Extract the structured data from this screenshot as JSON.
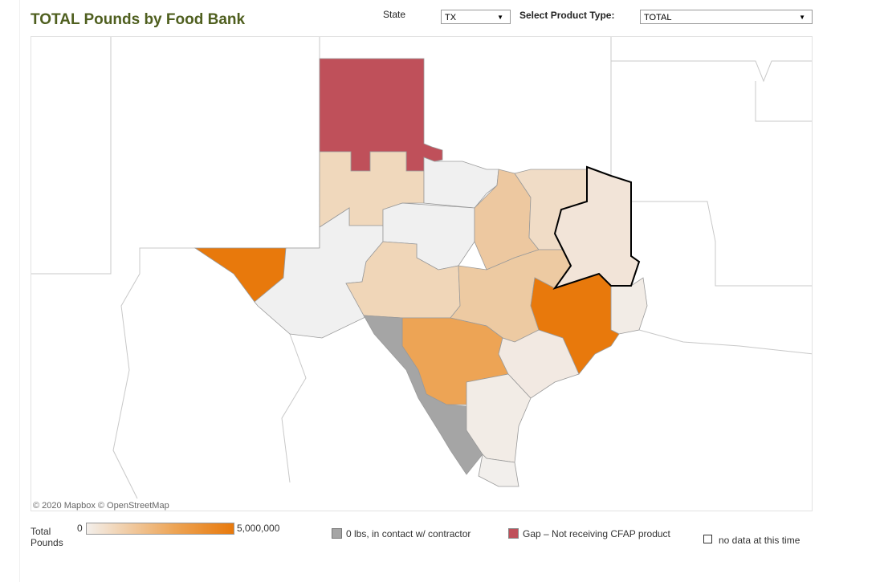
{
  "title": "TOTAL Pounds by Food Bank",
  "filters": {
    "state_label": "State",
    "state_value": "TX",
    "product_label": "Select Product Type:",
    "product_value": "TOTAL"
  },
  "map": {
    "attribution": "© 2020 Mapbox © OpenStreetMap",
    "highlight_stroke": "#000000"
  },
  "legend": {
    "title_line1": "Total",
    "title_line2": "Pounds",
    "scale_min": "0",
    "scale_max": "5,000,000",
    "scale_colors": [
      "#f3efeb",
      "#e8790c"
    ],
    "gray_label": "0 lbs, in contact w/ contractor",
    "gray_color": "#a5a5a5",
    "gap_label": "Gap – Not receiving CFAP product",
    "gap_color": "#bf505a",
    "nodata_label": "no data at this time"
  }
}
